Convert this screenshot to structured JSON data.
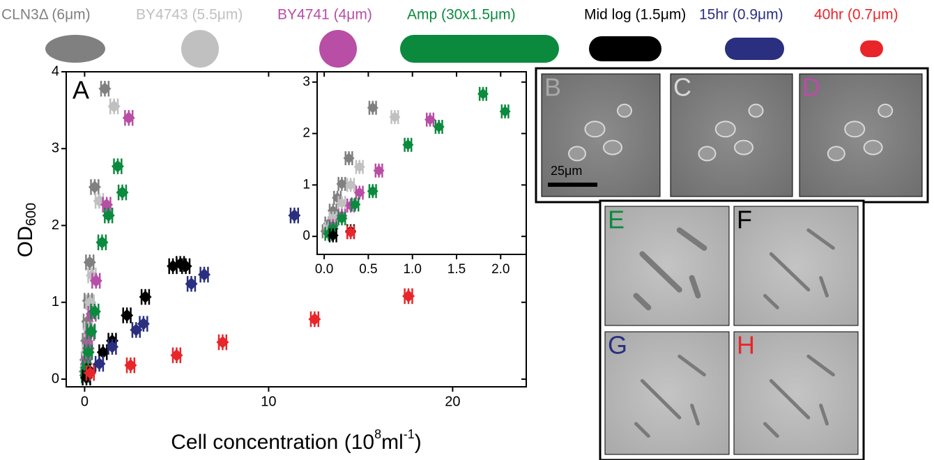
{
  "chart_data": [
    {
      "type": "scatter",
      "panel_label": "A",
      "x_label_parts": [
        "Cell concentration (10",
        "8",
        "ml",
        "-1",
        ")"
      ],
      "y_label_parts": [
        "OD",
        "600"
      ],
      "xlim": [
        -1,
        24
      ],
      "ylim": [
        -0.1,
        4
      ],
      "xticks": [
        0,
        10,
        20
      ],
      "yticks": [
        0,
        1,
        2,
        3,
        4
      ],
      "series": [
        {
          "name": "CLN3Δ (6μm)",
          "color": "#808080",
          "x": [
            1.1,
            0.55,
            0.28,
            0.2,
            0.15,
            0.1,
            0.05,
            0.02
          ],
          "values": [
            3.78,
            2.5,
            1.52,
            1.02,
            0.75,
            0.5,
            0.25,
            0.1
          ]
        },
        {
          "name": "BY4743 (5.5μm)",
          "color": "#c0c0c0",
          "x": [
            1.6,
            0.8,
            0.4,
            0.3,
            0.2,
            0.1,
            0.05
          ],
          "values": [
            3.55,
            2.32,
            1.35,
            1.0,
            0.65,
            0.35,
            0.15
          ]
        },
        {
          "name": "BY4741 (4μm)",
          "color": "#b84ea6",
          "x": [
            2.4,
            1.2,
            0.62,
            0.4,
            0.3,
            0.2,
            0.1
          ],
          "values": [
            3.4,
            2.27,
            1.28,
            0.85,
            0.6,
            0.4,
            0.2
          ]
        },
        {
          "name": "Amp (30x1.5μm)",
          "color": "#0b8a3e",
          "x": [
            1.8,
            2.05,
            1.3,
            0.95,
            0.55,
            0.35,
            0.2,
            0.1,
            0.05
          ],
          "values": [
            2.77,
            2.43,
            2.13,
            1.78,
            0.88,
            0.62,
            0.35,
            0.15,
            0.05
          ]
        },
        {
          "name": "Mid log (1.5μm)",
          "color": "#000000",
          "x": [
            5.2,
            4.8,
            5.5,
            3.3,
            2.3,
            1.5,
            1.0,
            0.3,
            0.1
          ],
          "values": [
            1.5,
            1.47,
            1.47,
            1.07,
            0.83,
            0.5,
            0.35,
            0.1,
            0.02
          ]
        },
        {
          "name": "15hr (0.9μm)",
          "color": "#2a2f7f",
          "x": [
            11.4,
            6.5,
            5.8,
            3.2,
            2.8,
            1.5,
            0.8
          ],
          "values": [
            2.13,
            1.36,
            1.24,
            0.72,
            0.64,
            0.42,
            0.2
          ]
        },
        {
          "name": "40hr (0.7μm)",
          "color": "#e8262a",
          "x": [
            17.6,
            12.5,
            7.5,
            5.0,
            2.5,
            0.3
          ],
          "values": [
            1.08,
            0.78,
            0.48,
            0.31,
            0.18,
            0.08
          ]
        }
      ]
    },
    {
      "type": "scatter",
      "xlim": [
        -0.08,
        2.29
      ],
      "ylim": [
        -0.35,
        3.2
      ],
      "xticks": [
        {
          "value": 0,
          "label": "0.0"
        },
        0.5,
        {
          "value": 1,
          "label": "1.0"
        },
        1.5,
        {
          "value": 2,
          "label": "2.0"
        }
      ],
      "yticks": [
        0,
        1,
        2,
        3
      ],
      "series": [
        {
          "color": "#808080",
          "x": [
            0.55,
            0.28,
            0.2,
            0.15,
            0.1,
            0.05,
            0.02
          ],
          "values": [
            2.5,
            1.52,
            1.02,
            0.75,
            0.5,
            0.25,
            0.1
          ]
        },
        {
          "color": "#c0c0c0",
          "x": [
            0.8,
            0.4,
            0.3,
            0.2,
            0.1,
            0.05
          ],
          "values": [
            2.32,
            1.35,
            1.0,
            0.65,
            0.35,
            0.15
          ]
        },
        {
          "color": "#b84ea6",
          "x": [
            1.2,
            0.62,
            0.4,
            0.3,
            0.2,
            0.1
          ],
          "values": [
            2.27,
            1.28,
            0.85,
            0.6,
            0.4,
            0.2
          ]
        },
        {
          "color": "#0b8a3e",
          "x": [
            1.8,
            2.05,
            1.3,
            0.95,
            0.55,
            0.35,
            0.2,
            0.1,
            0.05
          ],
          "values": [
            2.77,
            2.43,
            2.13,
            1.78,
            0.88,
            0.62,
            0.35,
            0.15,
            0.05
          ]
        },
        {
          "color": "#000000",
          "x": [
            0.3,
            0.1
          ],
          "values": [
            0.1,
            0.02
          ]
        },
        {
          "color": "#e8262a",
          "x": [
            0.3
          ],
          "values": [
            0.08
          ]
        }
      ]
    }
  ],
  "micrographs": {
    "scale_bar": "25μm",
    "panels": [
      {
        "label": "B",
        "color": "#a8a8a8"
      },
      {
        "label": "C",
        "color": "#d8d8d8"
      },
      {
        "label": "D",
        "color": "#b84ea6"
      },
      {
        "label": "E",
        "color": "#0b8a3e"
      },
      {
        "label": "F",
        "color": "#000000"
      },
      {
        "label": "G",
        "color": "#2a2f7f"
      },
      {
        "label": "H",
        "color": "#e8262a"
      }
    ]
  }
}
